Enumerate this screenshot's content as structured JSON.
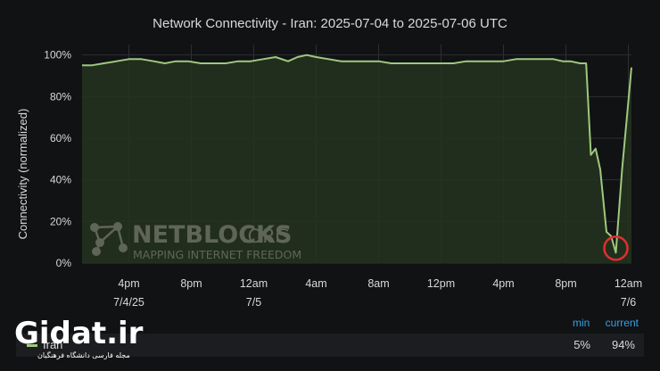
{
  "chart_data": {
    "type": "area",
    "title": "Network Connectivity - Iran: 2025-07-04 to 2025-07-06 UTC",
    "ylabel": "Connectivity (normalized)",
    "xlabel": "",
    "ylim": [
      0,
      105
    ],
    "xlim": [
      13.0,
      48.2
    ],
    "yticks": [
      {
        "value": 0,
        "label": "0%"
      },
      {
        "value": 20,
        "label": "20%"
      },
      {
        "value": 40,
        "label": "40%"
      },
      {
        "value": 60,
        "label": "60%"
      },
      {
        "value": 80,
        "label": "80%"
      },
      {
        "value": 100,
        "label": "100%"
      }
    ],
    "xticks": [
      {
        "value": 16,
        "label": "4pm",
        "sublabel": "7/4/25"
      },
      {
        "value": 20,
        "label": "8pm",
        "sublabel": ""
      },
      {
        "value": 24,
        "label": "12am",
        "sublabel": "7/5"
      },
      {
        "value": 28,
        "label": "4am",
        "sublabel": ""
      },
      {
        "value": 32,
        "label": "8am",
        "sublabel": ""
      },
      {
        "value": 36,
        "label": "12pm",
        "sublabel": ""
      },
      {
        "value": 40,
        "label": "4pm",
        "sublabel": ""
      },
      {
        "value": 44,
        "label": "8pm",
        "sublabel": ""
      },
      {
        "value": 48,
        "label": "12am",
        "sublabel": "7/6"
      }
    ],
    "grid": true,
    "series": [
      {
        "name": "Iran",
        "color": "#9ec97f",
        "x": [
          13.0,
          13.6,
          14.4,
          15.2,
          16.0,
          16.8,
          17.6,
          18.3,
          19.0,
          19.8,
          20.6,
          21.4,
          22.2,
          23.0,
          23.8,
          24.6,
          25.4,
          26.2,
          26.8,
          27.4,
          28.0,
          28.8,
          29.6,
          30.4,
          31.2,
          32.0,
          32.8,
          33.6,
          34.4,
          35.2,
          36.0,
          36.8,
          37.6,
          38.4,
          39.2,
          40.0,
          40.8,
          41.6,
          42.4,
          43.2,
          43.8,
          44.3,
          44.9,
          45.3,
          45.6,
          45.9,
          46.2,
          46.6,
          46.9,
          47.2,
          47.6,
          48.2
        ],
        "y": [
          95,
          95,
          96,
          97,
          98,
          98,
          97,
          96,
          97,
          97,
          96,
          96,
          96,
          97,
          97,
          98,
          99,
          97,
          99,
          100,
          99,
          98,
          97,
          97,
          97,
          97,
          96,
          96,
          96,
          96,
          96,
          96,
          97,
          97,
          97,
          97,
          98,
          98,
          98,
          98,
          97,
          97,
          96,
          96,
          52,
          55,
          45,
          15,
          13,
          5,
          45,
          94
        ]
      }
    ],
    "legend": {
      "position": "bottom",
      "columns": [
        "min",
        "current"
      ],
      "rows": [
        {
          "name": "Iran",
          "min": "5%",
          "current": "94%"
        }
      ]
    },
    "annotations": {
      "marker_at": {
        "x": 47.2,
        "y": 5,
        "color": "#e02f2f"
      },
      "watermark": {
        "text": "NETBLOCKS",
        "suffix": ".ORG",
        "tagline": "MAPPING INTERNET FREEDOM"
      },
      "site_logo": {
        "text": "Gidat.ir",
        "tagline": "مجله فارسی دانشگاه فرهنگیان"
      }
    },
    "colors": {
      "fill": "#26341f",
      "line": "#9ec97f",
      "grid": "#2e2f33",
      "text": "#d8d9da",
      "legend_accent": "#33a2e5"
    }
  }
}
